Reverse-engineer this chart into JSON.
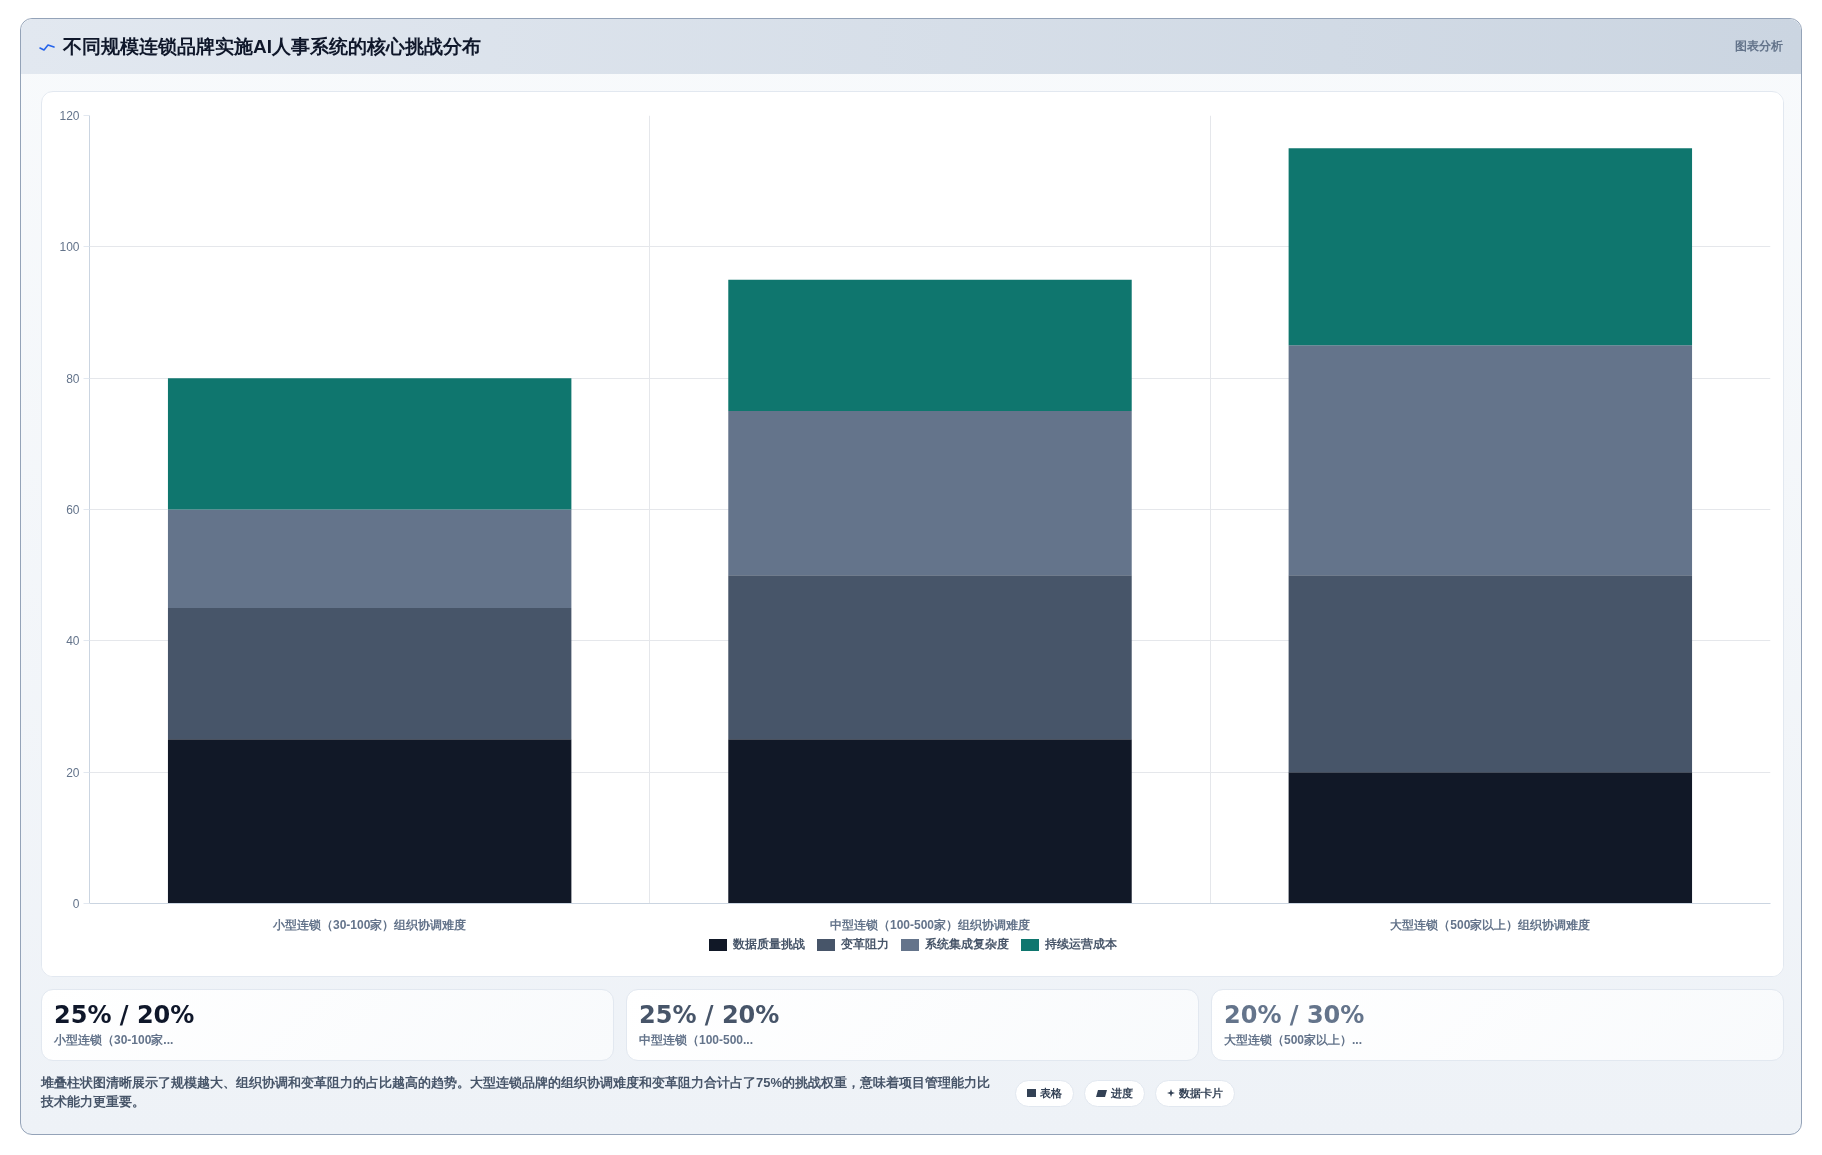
{
  "chart_data": {
    "type": "bar",
    "title": "不同规模连锁品牌实施AI人事系统的核心挑战分布",
    "categories": [
      "小型连锁（30-100家）组织协调难度",
      "中型连锁（100-500家）组织协调难度",
      "大型连锁（500家以上）组织协调难度"
    ],
    "stacked": true,
    "series": [
      {
        "name": "数据质量挑战",
        "color": "#111827",
        "values": [
          25,
          25,
          20
        ]
      },
      {
        "name": "变革阻力",
        "color": "#475569",
        "values": [
          20,
          25,
          30
        ]
      },
      {
        "name": "系统集成复杂度",
        "color": "#64748b",
        "values": [
          15,
          25,
          35
        ]
      },
      {
        "name": "持续运营成本",
        "color": "#0f766e",
        "values": [
          20,
          20,
          30
        ]
      }
    ],
    "ylim": [
      0,
      120
    ],
    "yticks": [
      0,
      20,
      40,
      60,
      80,
      100,
      120
    ],
    "grid": true,
    "legend": "bottom",
    "annotations": [
      "图表分析",
      "25% / 20%",
      "小型连锁（30-100家...",
      "25% / 20%",
      "中型连锁（100-500...",
      "20% / 30%",
      "大型连锁（500家以上）...",
      "堆叠柱状图清晰展示了规模越大、组织协调和变革阻力的占比越高的趋势。大型连锁品牌的组织协调难度和变革阻力合计占了75%的挑战权重，意味着项目管理能力比技术能力更重要。",
      "表格",
      "进度",
      "数据卡片"
    ]
  }
}
